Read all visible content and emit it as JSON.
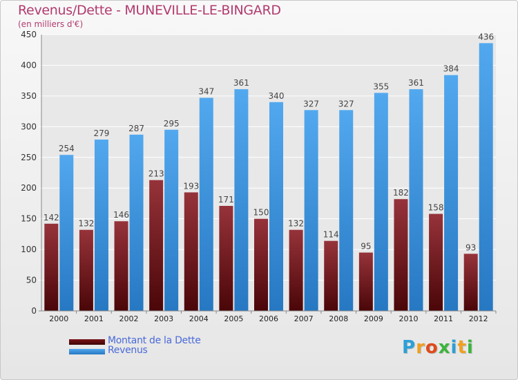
{
  "chart_data": {
    "type": "bar",
    "title": "Revenus/Dette - MUNEVILLE-LE-BINGARD",
    "subtitle": "(en milliers d'€)",
    "categories": [
      "2000",
      "2001",
      "2002",
      "2003",
      "2004",
      "2005",
      "2006",
      "2007",
      "2008",
      "2009",
      "2010",
      "2011",
      "2012"
    ],
    "series": [
      {
        "name": "Montant de la Dette",
        "values": [
          142,
          132,
          146,
          213,
          193,
          171,
          150,
          132,
          114,
          95,
          182,
          158,
          93
        ],
        "color": "#8b1f24"
      },
      {
        "name": "Revenus",
        "values": [
          254,
          279,
          287,
          295,
          347,
          361,
          340,
          327,
          327,
          355,
          361,
          384,
          436
        ],
        "color": "#3d9ae8"
      }
    ],
    "ylim": [
      0,
      450
    ],
    "yticks": [
      0,
      50,
      100,
      150,
      200,
      250,
      300,
      350,
      400,
      450
    ],
    "grid": true,
    "legend_position": "bottom-left"
  },
  "logo": {
    "letters": [
      {
        "ch": "P",
        "color": "#2aa0d8"
      },
      {
        "ch": "r",
        "color": "#f0a020"
      },
      {
        "ch": "o",
        "color": "#e04b1a"
      },
      {
        "ch": "x",
        "color": "#3cb43c"
      },
      {
        "ch": "i",
        "color": "#2aa0d8"
      },
      {
        "ch": "t",
        "color": "#f0a020"
      },
      {
        "ch": "i",
        "color": "#3cb43c"
      }
    ]
  }
}
